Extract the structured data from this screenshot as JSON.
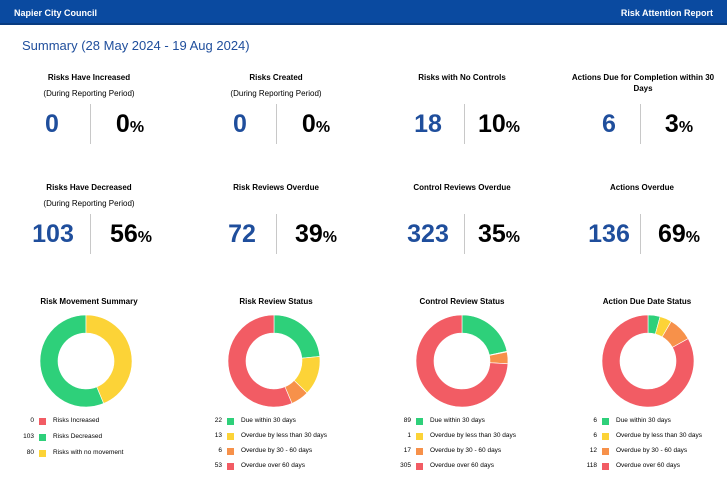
{
  "header": {
    "org": "Napier City Council",
    "report": "Risk Attention Report"
  },
  "summary_title": "Summary (28 May 2024 - 19 Aug 2024)",
  "kpis": [
    {
      "title": "Risks Have Increased",
      "subtitle": "(During Reporting Period)",
      "number": "0",
      "percent": "0",
      "unit": "%"
    },
    {
      "title": "Risks Created",
      "subtitle": "(During Reporting Period)",
      "number": "0",
      "percent": "0",
      "unit": "%"
    },
    {
      "title": "Risks with No Controls",
      "subtitle": "",
      "number": "18",
      "percent": "10",
      "unit": "%"
    },
    {
      "title": "Actions Due for Completion within 30 Days",
      "subtitle": "",
      "number": "6",
      "percent": "3",
      "unit": "%"
    },
    {
      "title": "Risks Have Decreased",
      "subtitle": "(During Reporting Period)",
      "number": "103",
      "percent": "56",
      "unit": "%"
    },
    {
      "title": "Risk Reviews Overdue",
      "subtitle": "",
      "number": "72",
      "percent": "39",
      "unit": "%"
    },
    {
      "title": "Control Reviews Overdue",
      "subtitle": "",
      "number": "323",
      "percent": "35",
      "unit": "%"
    },
    {
      "title": "Actions Overdue",
      "subtitle": "",
      "number": "136",
      "percent": "69",
      "unit": "%"
    }
  ],
  "colors": {
    "red": "#f25c64",
    "green": "#2ed07a",
    "yellow": "#fcd337",
    "orange": "#f7914a",
    "brand": "#0a4aa0",
    "number": "#1f4e9c"
  },
  "chart_data": [
    {
      "type": "pie",
      "title": "Risk Movement Summary",
      "categories": [
        "Risks Increased",
        "Risks Decreased",
        "Risks with no movement"
      ],
      "values": [
        0,
        103,
        80
      ],
      "colors": [
        "#f25c64",
        "#2ed07a",
        "#fcd337"
      ],
      "counts": [
        "0",
        "103",
        "80"
      ]
    },
    {
      "type": "pie",
      "title": "Risk Review Status",
      "categories": [
        "Due within 30 days",
        "Overdue by less than 30 days",
        "Overdue by 30 - 60 days",
        "Overdue over 60 days"
      ],
      "values": [
        22,
        13,
        6,
        53
      ],
      "colors": [
        "#2ed07a",
        "#fcd337",
        "#f7914a",
        "#f25c64"
      ],
      "counts": [
        "22",
        "13",
        "6",
        "53"
      ]
    },
    {
      "type": "pie",
      "title": "Control Review Status",
      "categories": [
        "Due within 30 days",
        "Overdue by less than 30 days",
        "Overdue by 30 - 60 days",
        "Overdue over 60 days"
      ],
      "values": [
        89,
        1,
        17,
        305
      ],
      "colors": [
        "#2ed07a",
        "#fcd337",
        "#f7914a",
        "#f25c64"
      ],
      "counts": [
        "89",
        "1",
        "17",
        "305"
      ]
    },
    {
      "type": "pie",
      "title": "Action Due Date Status",
      "categories": [
        "Due within 30 days",
        "Overdue by less than 30 days",
        "Overdue by 30 - 60 days",
        "Overdue over 60 days"
      ],
      "values": [
        6,
        6,
        12,
        118
      ],
      "colors": [
        "#2ed07a",
        "#fcd337",
        "#f7914a",
        "#f25c64"
      ],
      "counts": [
        "6",
        "6",
        "12",
        "118"
      ]
    }
  ]
}
